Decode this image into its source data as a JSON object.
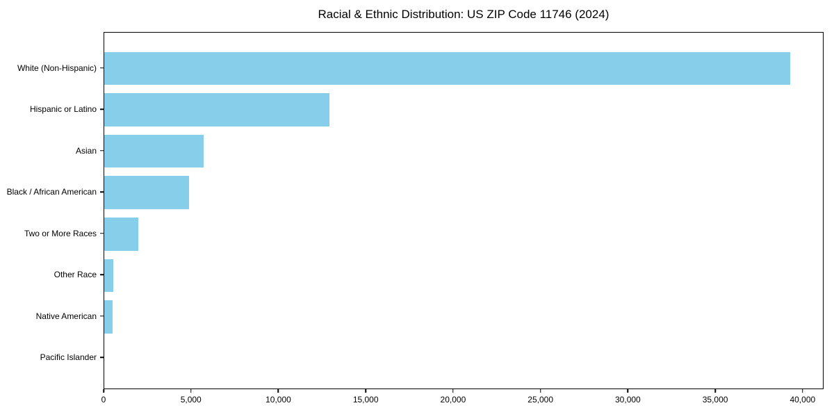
{
  "title": "Racial & Ethnic Distribution: US ZIP Code 11746 (2024)",
  "colors": {
    "bar": "#87CEEB",
    "axis": "#000000",
    "background": "#FFFFFF",
    "text": "#000000"
  },
  "chart_data": {
    "type": "bar",
    "orientation": "horizontal",
    "title": "Racial & Ethnic Distribution: US ZIP Code 11746 (2024)",
    "categories": [
      "White (Non-Hispanic)",
      "Hispanic or Latino",
      "Asian",
      "Black / African American",
      "Two or More Races",
      "Other Race",
      "Native American",
      "Pacific Islander"
    ],
    "values": [
      39250,
      12900,
      5700,
      4850,
      1950,
      530,
      460,
      0
    ],
    "xlabel": "",
    "ylabel": "",
    "x_ticks": [
      0,
      5000,
      10000,
      15000,
      20000,
      25000,
      30000,
      35000,
      40000
    ],
    "x_tick_labels": [
      "0",
      "5,000",
      "10,000",
      "15,000",
      "20,000",
      "25,000",
      "30,000",
      "35,000",
      "40,000"
    ],
    "xlim": [
      0,
      41200
    ],
    "grid": false,
    "legend": null,
    "bar_color": "#87CEEB",
    "frame": "box"
  }
}
